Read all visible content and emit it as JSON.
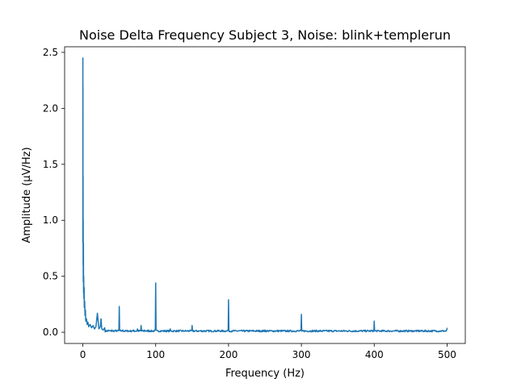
{
  "chart_data": {
    "type": "line",
    "title": "Noise Delta Frequency Subject 3, Noise: blink+templerun",
    "xlabel": "Frequency (Hz)",
    "ylabel": "Amplitude (μV/Hz)",
    "xlim": [
      -25,
      525
    ],
    "ylim": [
      -0.1,
      2.55
    ],
    "xticks": [
      0,
      100,
      200,
      300,
      400,
      500
    ],
    "xtick_labels": [
      "0",
      "100",
      "200",
      "300",
      "400",
      "500"
    ],
    "yticks": [
      0.0,
      0.5,
      1.0,
      1.5,
      2.0,
      2.5
    ],
    "ytick_labels": [
      "0.0",
      "0.5",
      "1.0",
      "1.5",
      "2.0",
      "2.5"
    ],
    "grid": false,
    "color": "#1f77b4",
    "series": [
      {
        "x": [
          0,
          0.05,
          0.1,
          0.15,
          0.2,
          0.3,
          0.4,
          0.5,
          0.6,
          0.8,
          1.0,
          1.2,
          1.5,
          1.8,
          2.0,
          2.5,
          3.0,
          3.5,
          4.0,
          5.0,
          6.0,
          7.0,
          8.0,
          10.0,
          12.0,
          14.0,
          16.0,
          18.0,
          20.0,
          22.0,
          24.0,
          25.0,
          26.0,
          28.0,
          30.0,
          35.0,
          40.0,
          45.0,
          49.5,
          50.0,
          50.5,
          55.0,
          60.0,
          70.0,
          75.0,
          80.0,
          85.0,
          90.0,
          99.5,
          100.0,
          100.5,
          110.0,
          120.0,
          130.0,
          140.0,
          149.5,
          150.0,
          150.5,
          160.0,
          180.0,
          199.5,
          200.0,
          200.5,
          220.0,
          250.0,
          260.0,
          280.0,
          299.5,
          300.0,
          300.5,
          320.0,
          350.0,
          380.0,
          399.5,
          400.0,
          400.5,
          420.0,
          450.0,
          480.0,
          499.5,
          500.0
        ],
        "y": [
          0.8,
          2.45,
          1.1,
          2.2,
          0.9,
          1.4,
          0.6,
          1.0,
          0.45,
          0.8,
          0.35,
          0.5,
          0.3,
          0.4,
          0.22,
          0.28,
          0.15,
          0.2,
          0.1,
          0.12,
          0.07,
          0.09,
          0.05,
          0.07,
          0.04,
          0.06,
          0.03,
          0.05,
          0.17,
          0.03,
          0.05,
          0.12,
          0.03,
          0.02,
          0.04,
          0.02,
          0.02,
          0.02,
          0.03,
          0.23,
          0.02,
          0.02,
          0.01,
          0.02,
          0.03,
          0.06,
          0.02,
          0.02,
          0.03,
          0.44,
          0.02,
          0.01,
          0.03,
          0.01,
          0.01,
          0.02,
          0.06,
          0.01,
          0.01,
          0.01,
          0.02,
          0.29,
          0.01,
          0.01,
          0.02,
          0.01,
          0.01,
          0.02,
          0.16,
          0.01,
          0.01,
          0.01,
          0.01,
          0.02,
          0.1,
          0.01,
          0.01,
          0.01,
          0.01,
          0.02,
          0.04
        ]
      }
    ]
  }
}
